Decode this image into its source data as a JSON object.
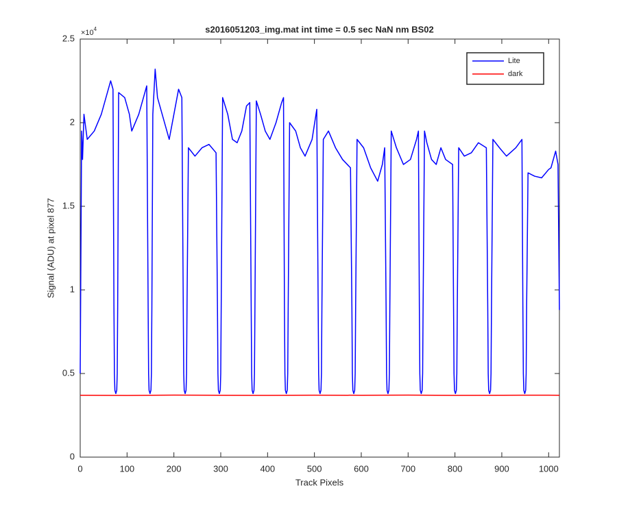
{
  "chart_data": {
    "type": "line",
    "title": "s2016051203_img.mat int time = 0.5 sec  NaN nm BS02",
    "xlabel": "Track Pixels",
    "ylabel": "Signal (ADU) at pixel 877",
    "y_multiplier": "×10",
    "y_multiplier_exponent": "4",
    "xlim": [
      0,
      1023
    ],
    "ylim": [
      0,
      25000
    ],
    "xticks": [
      0,
      100,
      200,
      300,
      400,
      500,
      600,
      700,
      800,
      900,
      1000
    ],
    "yticks": [
      0,
      {
        "value": 5000,
        "label": "0.5"
      },
      {
        "value": 10000,
        "label": "1"
      },
      {
        "value": 15000,
        "label": "1.5"
      },
      {
        "value": 20000,
        "label": "2"
      },
      {
        "value": 25000,
        "label": "2.5"
      }
    ],
    "legend": "upper right",
    "series": [
      {
        "name": "Lite",
        "color": "#0000ff",
        "x": [
          0,
          3,
          5,
          8,
          15,
          30,
          45,
          60,
          65,
          70,
          72,
          73,
          74,
          76,
          78,
          79,
          80,
          82,
          95,
          105,
          110,
          125,
          135,
          142,
          145,
          146,
          147,
          149,
          151,
          152,
          153,
          155,
          160,
          165,
          175,
          185,
          190,
          200,
          210,
          217,
          220,
          221,
          222,
          224,
          226,
          227,
          228,
          231,
          245,
          260,
          275,
          290,
          293,
          294,
          295,
          297,
          299,
          300,
          301,
          304,
          315,
          325,
          335,
          345,
          355,
          362,
          365,
          366,
          367,
          369,
          371,
          372,
          373,
          376,
          385,
          395,
          405,
          418,
          430,
          434,
          436,
          437,
          438,
          440,
          442,
          443,
          444,
          447,
          460,
          470,
          480,
          495,
          505,
          508,
          509,
          510,
          512,
          514,
          515,
          516,
          519,
          530,
          545,
          560,
          577,
          580,
          581,
          582,
          584,
          586,
          587,
          588,
          591,
          605,
          620,
          635,
          645,
          650,
          653,
          654,
          655,
          657,
          659,
          660,
          661,
          664,
          675,
          690,
          705,
          718,
          722,
          724,
          725,
          726,
          728,
          730,
          731,
          732,
          735,
          740,
          750,
          760,
          770,
          780,
          795,
          797,
          798,
          799,
          801,
          803,
          804,
          805,
          808,
          820,
          835,
          850,
          867,
          870,
          871,
          872,
          874,
          876,
          877,
          878,
          881,
          895,
          910,
          930,
          943,
          945,
          946,
          947,
          949,
          951,
          952,
          953,
          956,
          970,
          985,
          1000,
          1005,
          1015,
          1020,
          1023
        ],
        "values": [
          5000,
          19500,
          17800,
          20500,
          19000,
          19500,
          20500,
          22000,
          22500,
          22000,
          9000,
          5000,
          4000,
          3800,
          4000,
          5000,
          9000,
          21800,
          21500,
          20500,
          19500,
          20500,
          21500,
          22200,
          9000,
          5000,
          4000,
          3800,
          4000,
          5000,
          9000,
          20500,
          23200,
          21500,
          20500,
          19500,
          19000,
          20500,
          22000,
          21500,
          9000,
          5000,
          4000,
          3800,
          4000,
          5000,
          9000,
          18500,
          18000,
          18500,
          18700,
          18200,
          9000,
          5000,
          4000,
          3800,
          4000,
          5000,
          9000,
          21500,
          20500,
          19000,
          18800,
          19500,
          21000,
          21200,
          9000,
          5000,
          4000,
          3800,
          4000,
          5000,
          9000,
          21300,
          20500,
          19500,
          19000,
          20000,
          21200,
          21500,
          9000,
          5000,
          4000,
          3800,
          4000,
          5000,
          9000,
          20000,
          19500,
          18500,
          18000,
          19000,
          20800,
          9000,
          5000,
          4000,
          3800,
          4000,
          5000,
          9000,
          19000,
          19500,
          18500,
          17800,
          17300,
          9000,
          5000,
          4000,
          3800,
          4000,
          5000,
          9000,
          19000,
          18500,
          17300,
          16500,
          17500,
          18500,
          9000,
          5000,
          4000,
          3800,
          4000,
          5000,
          9000,
          19500,
          18500,
          17500,
          17800,
          19000,
          19500,
          9000,
          5000,
          4000,
          3800,
          4000,
          5000,
          9000,
          19500,
          18800,
          17800,
          17500,
          18500,
          17800,
          17500,
          9000,
          5000,
          4000,
          3800,
          4000,
          5000,
          9000,
          18500,
          18000,
          18200,
          18800,
          18500,
          9000,
          5000,
          4000,
          3800,
          4000,
          5000,
          9000,
          19000,
          18500,
          18000,
          18500,
          19000,
          9000,
          5000,
          4000,
          3800,
          4000,
          5000,
          9000,
          17000,
          16800,
          16700,
          17200,
          17300,
          18300,
          17500,
          8800
        ]
      },
      {
        "name": "dark",
        "color": "#ff0000",
        "x": [
          0,
          100,
          200,
          300,
          400,
          500,
          600,
          700,
          800,
          900,
          1000,
          1023
        ],
        "values": [
          3700,
          3690,
          3710,
          3700,
          3695,
          3705,
          3700,
          3710,
          3695,
          3700,
          3705,
          3700
        ]
      }
    ]
  }
}
